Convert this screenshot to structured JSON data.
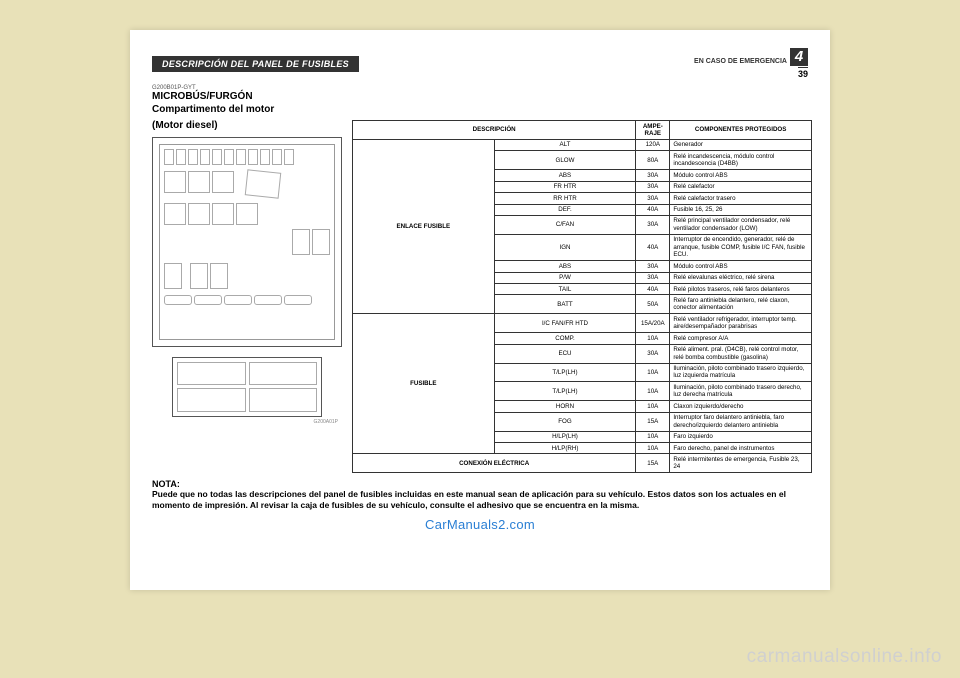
{
  "chapter": {
    "label": "EN CASO DE EMERGENCIA",
    "number": "4",
    "page": "39"
  },
  "header_bar": "DESCRIPCIÓN DEL PANEL DE FUSIBLES",
  "ref_code": "G200B01P-GYT",
  "section_title_1": "MICROBÚS/FURGÓN",
  "section_title_2": "Compartimento del motor",
  "section_title_3": "(Motor diesel)",
  "diagram_label": "G200A01P",
  "table": {
    "headers": {
      "desc": "DESCRIPCIÓN",
      "amp": "AMPE-\nRAJE",
      "comp": "COMPONENTES PROTEGIDOS"
    },
    "groups": [
      {
        "name": "ENLACE FUSIBLE",
        "rows": [
          {
            "n": "ALT",
            "a": "120A",
            "c": "Generador"
          },
          {
            "n": "GLOW",
            "a": "80A",
            "c": "Relé incandescencia, módulo control incandescencia (D4BB)"
          },
          {
            "n": "ABS",
            "a": "30A",
            "c": "Módulo control ABS"
          },
          {
            "n": "FR HTR",
            "a": "30A",
            "c": "Relé calefactor"
          },
          {
            "n": "RR HTR",
            "a": "30A",
            "c": "Relé calefactor trasero"
          },
          {
            "n": "DEF.",
            "a": "40A",
            "c": "Fusible 16, 25, 26"
          },
          {
            "n": "C/FAN",
            "a": "30A",
            "c": "Relé principal ventilador condensador, relé ventilador condensador (LOW)"
          },
          {
            "n": "IGN",
            "a": "40A",
            "c": "Interruptor de encendido, generador, relé de arranque, fusible COMP, fusible I/C FAN, fusible ECU."
          },
          {
            "n": "ABS",
            "a": "30A",
            "c": "Módulo control ABS"
          },
          {
            "n": "P/W",
            "a": "30A",
            "c": "Relé elevalunas eléctrico, relé sirena"
          },
          {
            "n": "TAIL",
            "a": "40A",
            "c": "Relé pilotos traseros, relé faros delanteros"
          },
          {
            "n": "BATT",
            "a": "50A",
            "c": "Relé faro antiniebla delantero, relé claxon, conector alimentación"
          }
        ]
      },
      {
        "name": "FUSIBLE",
        "rows": [
          {
            "n": "I/C FAN/FR HTD",
            "a": "15A/20A",
            "c": "Relé ventilador refrigerador, interruptor temp. aire/desempañador parabrisas"
          },
          {
            "n": "COMP.",
            "a": "10A",
            "c": "Relé compresor A/A"
          },
          {
            "n": "ECU",
            "a": "30A",
            "c": "Relé aliment. pral. (D4CB), relé control motor, relé bomba combustible (gasolina)"
          },
          {
            "n": "T/LP(LH)",
            "a": "10A",
            "c": "Iluminación, piloto combinado trasero izquierdo, luz izquierda matrícula"
          },
          {
            "n": "T/LP(LH)",
            "a": "10A",
            "c": "Iluminación, piloto combinado trasero derecho, luz derecha matrícula"
          },
          {
            "n": "HORN",
            "a": "10A",
            "c": "Claxon izquierdo/derecho"
          },
          {
            "n": "FOG",
            "a": "15A",
            "c": "Interruptor faro delantero antiniebla, faro derecho/izquierdo delantero antiniebla"
          },
          {
            "n": "H/LP(LH)",
            "a": "10A",
            "c": "Faro izquierdo"
          },
          {
            "n": "H/LP(RH)",
            "a": "10A",
            "c": "Faro derecho, panel de instrumentos"
          }
        ]
      },
      {
        "name_full": "CONEXIÓN ELÉCTRICA",
        "rows": [
          {
            "n": "",
            "a": "15A",
            "c": "Relé intermitentes de emergencia, Fusible 23, 24"
          }
        ]
      }
    ]
  },
  "note": {
    "heading": "NOTA:",
    "body": "Puede que no todas las descripciones del panel de fusibles incluidas en este manual sean de aplicación para su vehículo. Estos datos son los actuales en el momento de impresión. Al revisar la caja de fusibles de su vehículo, consulte el adhesivo que se encuentra en la misma."
  },
  "watermark": "CarManuals2.com",
  "footer_watermark": "carmanualsonline.info"
}
